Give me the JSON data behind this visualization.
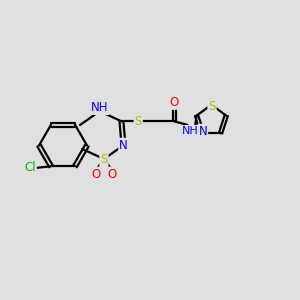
{
  "bg_color": "#e0e0e0",
  "bond_color": "#000000",
  "bond_width": 1.6,
  "atom_colors": {
    "N": "#0000ff",
    "O": "#ff0000",
    "S": "#b8b800",
    "Cl": "#00bb00",
    "NH": "#0000ff"
  },
  "font_size": 8.5,
  "figsize": [
    3.0,
    3.0
  ],
  "dpi": 100,
  "xlim": [
    0,
    10
  ],
  "ylim": [
    0,
    10
  ]
}
